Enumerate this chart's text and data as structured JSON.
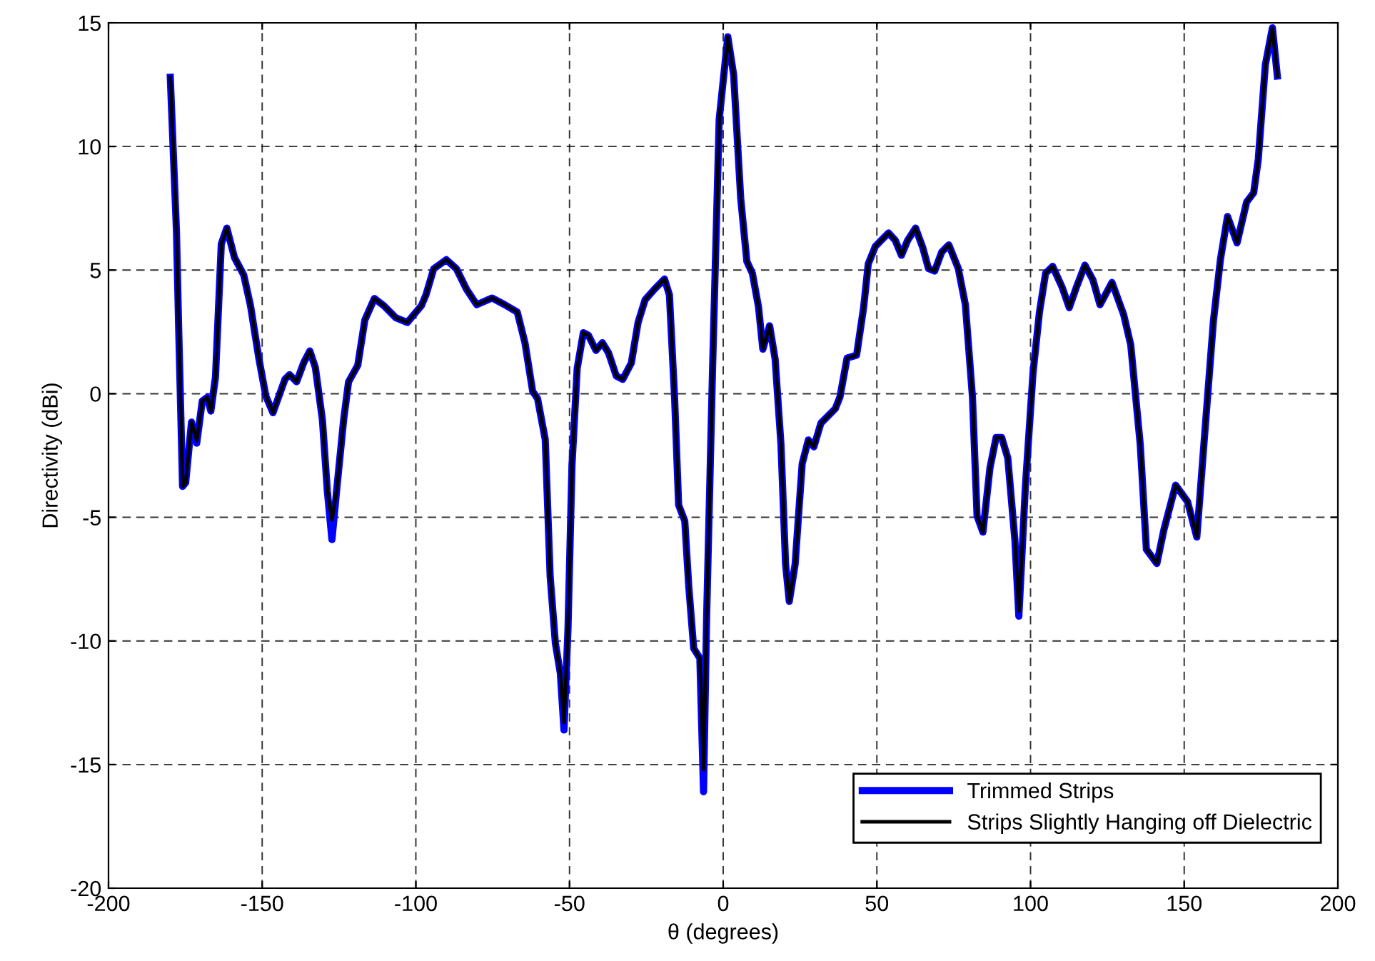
{
  "chart_data": {
    "type": "line",
    "xlabel": "θ (degrees)",
    "ylabel": "Directivity (dBi)",
    "x": [
      -179.9,
      -177.9,
      -177.2,
      -175.9,
      -174.9,
      -173,
      -171.3,
      -169.5,
      -167.9,
      -166.7,
      -165.2,
      -163.3,
      -161.5,
      -159,
      -156,
      -153.8,
      -151.1,
      -148.8,
      -146.5,
      -142.6,
      -141.1,
      -138.8,
      -136.5,
      -134.5,
      -132.7,
      -130.4,
      -128.8,
      -127.3,
      -125.8,
      -123.5,
      -121.9,
      -118.9,
      -116.6,
      -113.5,
      -110.4,
      -106.6,
      -102.8,
      -98.2,
      -96.7,
      -94.2,
      -90.1,
      -86.8,
      -83.5,
      -80.2,
      -75.2,
      -71.1,
      -67,
      -64.5,
      -62,
      -60.4,
      -57.9,
      -56.3,
      -54.6,
      -53,
      -51.8,
      -50.5,
      -49.2,
      -47.5,
      -45.5,
      -43.9,
      -41.4,
      -39.3,
      -37.3,
      -34.8,
      -32.7,
      -29.9,
      -27.7,
      -25.4,
      -22.4,
      -19.1,
      -17.5,
      -15.8,
      -14.5,
      -12.5,
      -11.2,
      -9.6,
      -7.6,
      -6.4,
      -5.4,
      -3.5,
      -1.3,
      1.5,
      3.4,
      5.7,
      7.7,
      9.5,
      11.5,
      12.9,
      15.1,
      16.9,
      18.8,
      20.3,
      21.5,
      23.4,
      25.7,
      27.7,
      29.5,
      31.8,
      36.5,
      38,
      40.3,
      43.4,
      45.7,
      47.2,
      49.5,
      53.8,
      56,
      58,
      60,
      62.6,
      64.9,
      66.8,
      68.8,
      71.1,
      73.4,
      76.5,
      78.8,
      81.1,
      82.6,
      84.5,
      86.8,
      88.8,
      90.6,
      92.6,
      94.9,
      96.2,
      98.3,
      100.8,
      102.9,
      104.9,
      107.2,
      110.3,
      112.6,
      114.9,
      117.7,
      120.3,
      122.6,
      126.5,
      130.3,
      132.6,
      135.7,
      137.7,
      141.1,
      143.4,
      147.2,
      151.1,
      154.1,
      156.4,
      159.5,
      161.8,
      164.1,
      167.2,
      170.3,
      172.6,
      174.1,
      176.4,
      178.7,
      180.3
    ],
    "series": [
      {
        "name": "Trimmed Strips",
        "color": "#0000ff",
        "values": [
          12.8,
          6.6,
          2.8,
          -3.75,
          -3.6,
          -1.15,
          -2.0,
          -0.3,
          -0.15,
          -0.7,
          0.67,
          6.06,
          6.7,
          5.5,
          4.8,
          3.56,
          1.44,
          -0.1,
          -0.77,
          0.58,
          0.77,
          0.48,
          1.25,
          1.73,
          1.06,
          -1.06,
          -3.94,
          -5.9,
          -3.94,
          -1.06,
          0.48,
          1.15,
          2.98,
          3.85,
          3.56,
          3.08,
          2.88,
          3.56,
          4.0,
          5.05,
          5.42,
          5.05,
          4.22,
          3.6,
          3.87,
          3.6,
          3.3,
          2.06,
          0.1,
          -0.2,
          -1.85,
          -7.4,
          -10.1,
          -11.3,
          -13.6,
          -9.5,
          -2.9,
          1.03,
          2.47,
          2.37,
          1.75,
          2.06,
          1.65,
          0.72,
          0.58,
          1.24,
          2.88,
          3.8,
          4.22,
          4.64,
          4.0,
          -0.2,
          -4.5,
          -5.15,
          -7.8,
          -10.3,
          -10.7,
          -16.1,
          -9.1,
          0.82,
          11.1,
          14.44,
          12.9,
          7.9,
          5.35,
          4.87,
          3.5,
          1.8,
          2.75,
          1.4,
          -2.06,
          -6.9,
          -8.4,
          -6.9,
          -2.83,
          -1.87,
          -2.15,
          -1.19,
          -0.6,
          -0.13,
          1.44,
          1.56,
          3.5,
          5.25,
          5.96,
          6.5,
          6.2,
          5.6,
          6.2,
          6.7,
          5.92,
          5.06,
          4.96,
          5.73,
          6.02,
          5.06,
          3.6,
          -0.13,
          -4.94,
          -5.6,
          -3.0,
          -1.77,
          -1.77,
          -2.6,
          -5.9,
          -9.0,
          -3.8,
          0.83,
          3.3,
          4.87,
          5.15,
          4.3,
          3.48,
          4.3,
          5.2,
          4.6,
          3.6,
          4.5,
          3.2,
          1.98,
          -2.06,
          -6.3,
          -6.87,
          -5.5,
          -3.7,
          -4.37,
          -5.8,
          -2.06,
          2.94,
          5.44,
          7.17,
          6.1,
          7.75,
          8.13,
          9.48,
          13.3,
          14.8,
          12.85
        ]
      },
      {
        "name": "Strips Slightly Hanging off Dielectric",
        "color": "#000000",
        "values": [
          12.8,
          6.6,
          2.8,
          -3.75,
          -3.6,
          -1.15,
          -1.9,
          -0.3,
          -0.15,
          -0.7,
          0.67,
          6.06,
          6.7,
          5.5,
          4.8,
          3.56,
          1.44,
          -0.1,
          -0.77,
          0.58,
          0.77,
          0.48,
          1.25,
          1.73,
          1.06,
          -1.06,
          -3.94,
          -5.1,
          -3.94,
          -1.06,
          0.48,
          1.15,
          2.98,
          3.85,
          3.56,
          3.08,
          2.88,
          3.56,
          4.0,
          5.05,
          5.42,
          5.05,
          4.22,
          3.6,
          3.87,
          3.6,
          3.3,
          2.06,
          0.1,
          -0.2,
          -1.85,
          -7.4,
          -10.1,
          -11.3,
          -13.3,
          -9.5,
          -2.9,
          1.03,
          2.47,
          2.37,
          1.75,
          2.06,
          1.65,
          0.72,
          0.58,
          1.24,
          2.88,
          3.8,
          4.22,
          4.64,
          4.0,
          -0.2,
          -4.5,
          -5.15,
          -7.8,
          -10.3,
          -10.7,
          -15.2,
          -9.1,
          0.82,
          11.1,
          14.44,
          12.9,
          7.9,
          5.35,
          4.87,
          3.5,
          1.8,
          2.75,
          1.4,
          -2.06,
          -6.9,
          -8.4,
          -6.9,
          -2.83,
          -1.87,
          -2.15,
          -1.19,
          -0.6,
          -0.13,
          1.44,
          1.56,
          3.5,
          5.25,
          5.96,
          6.5,
          6.2,
          5.6,
          6.2,
          6.7,
          5.92,
          5.06,
          4.96,
          5.73,
          6.02,
          5.06,
          3.6,
          -0.13,
          -4.94,
          -5.6,
          -3.0,
          -1.77,
          -1.77,
          -2.6,
          -5.9,
          -8.8,
          -3.8,
          0.83,
          3.3,
          4.87,
          5.15,
          4.3,
          3.48,
          4.3,
          5.2,
          4.6,
          3.6,
          4.5,
          3.2,
          1.98,
          -2.06,
          -6.3,
          -6.87,
          -5.5,
          -3.7,
          -4.37,
          -5.8,
          -2.06,
          2.94,
          5.44,
          7.17,
          6.1,
          7.75,
          8.13,
          9.48,
          13.3,
          14.8,
          12.85
        ]
      }
    ],
    "xlim": [
      -200,
      200
    ],
    "xticks": [
      -200,
      -150,
      -100,
      -50,
      0,
      50,
      100,
      150,
      200
    ],
    "ylim": [
      -20,
      15
    ],
    "yticks": [
      -20,
      -15,
      -10,
      -5,
      0,
      5,
      10,
      15
    ],
    "grid": true,
    "legend": "bottom right",
    "marker": "none",
    "line_style": "solid"
  }
}
